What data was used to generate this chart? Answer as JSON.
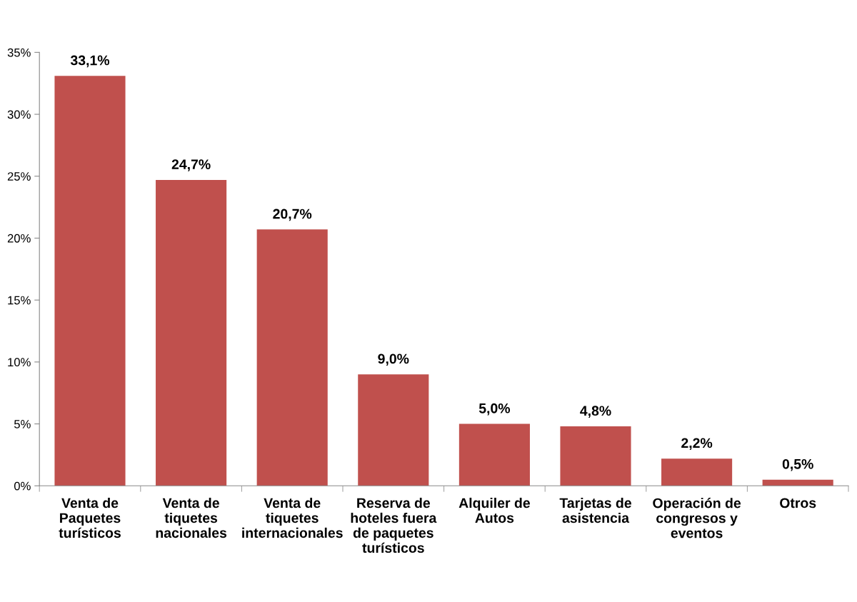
{
  "chart_data": {
    "type": "bar",
    "categories": [
      "Venta de\nPaquetes\nturísticos",
      "Venta de\ntiquetes\nnacionales",
      "Venta de\ntiquetes\ninternacionales",
      "Reserva de\nhoteles fuera\nde paquetes\nturísticos",
      "Alquiler de\nAutos",
      "Tarjetas de\nasistencia",
      "Operación de\ncongresos y\neventos",
      "Otros"
    ],
    "values": [
      33.1,
      24.7,
      20.7,
      9.0,
      5.0,
      4.8,
      2.2,
      0.5
    ],
    "value_labels": [
      "33,1%",
      "24,7%",
      "20,7%",
      "9,0%",
      "5,0%",
      "4,8%",
      "2,2%",
      "0,5%"
    ],
    "color": "#c0504d",
    "ylim": [
      0,
      35
    ],
    "yticks": [
      {
        "value": 0,
        "label": "0%"
      },
      {
        "value": 5,
        "label": "5%"
      },
      {
        "value": 10,
        "label": "10%"
      },
      {
        "value": 15,
        "label": "15%"
      },
      {
        "value": 20,
        "label": "20%"
      },
      {
        "value": 25,
        "label": "25%"
      },
      {
        "value": 30,
        "label": "30%"
      },
      {
        "value": 35,
        "label": "35%"
      }
    ],
    "grid": false,
    "legend": false
  }
}
